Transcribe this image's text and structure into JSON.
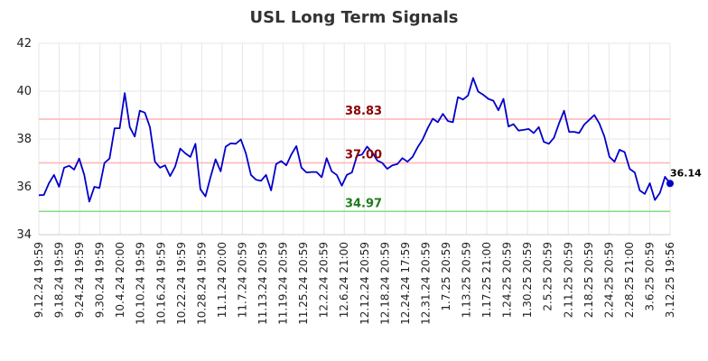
{
  "chart_data": {
    "type": "line",
    "title": "USL Long Term Signals",
    "xlabel": "",
    "ylabel": "",
    "ylim": [
      34,
      42
    ],
    "yticks": [
      34,
      36,
      38,
      40,
      42
    ],
    "grid": true,
    "x_tick_labels": [
      "9.12.24 19:59",
      "9.18.24 19:59",
      "9.24.24 19:59",
      "9.30.24 19:59",
      "10.4.24 20:00",
      "10.10.24 19:59",
      "10.16.24 19:59",
      "10.22.24 19:59",
      "10.28.24 19:59",
      "11.1.24 20:00",
      "11.7.24 20:59",
      "11.13.24 20:59",
      "11.19.24 20:59",
      "11.25.24 20:59",
      "12.2.24 20:59",
      "12.6.24 21:00",
      "12.12.24 20:59",
      "12.18.24 20:59",
      "12.24.24 17:59",
      "12.31.24 20:59",
      "1.7.25 20:59",
      "1.13.25 20:59",
      "1.17.25 21:00",
      "1.24.25 20:59",
      "1.30.25 20:59",
      "2.5.25 20:59",
      "2.11.25 20:59",
      "2.18.25 20:59",
      "2.24.25 20:59",
      "2.28.25 21:00",
      "3.6.25 20:59",
      "3.12.25 19:56"
    ],
    "series": [
      {
        "color": "#0000cc",
        "values": [
          35.65,
          35.66,
          36.15,
          36.5,
          36.0,
          36.8,
          36.88,
          36.72,
          37.18,
          36.5,
          35.38,
          36.0,
          35.95,
          37.0,
          37.18,
          38.45,
          38.45,
          39.92,
          38.5,
          38.1,
          39.18,
          39.1,
          38.5,
          37.05,
          36.8,
          36.9,
          36.45,
          36.85,
          37.6,
          37.4,
          37.25,
          37.8,
          35.9,
          35.6,
          36.4,
          37.15,
          36.65,
          37.68,
          37.82,
          37.8,
          37.98,
          37.4,
          36.5,
          36.3,
          36.25,
          36.5,
          35.85,
          36.95,
          37.08,
          36.9,
          37.35,
          37.7,
          36.8,
          36.6,
          36.62,
          36.62,
          36.4,
          37.2,
          36.65,
          36.5,
          36.05,
          36.5,
          36.6,
          37.3,
          37.35,
          37.68,
          37.45,
          37.1,
          37.0,
          36.75,
          36.9,
          36.95,
          37.2,
          37.05,
          37.25,
          37.65,
          37.98,
          38.45,
          38.85,
          38.7,
          39.05,
          38.75,
          38.7,
          39.75,
          39.65,
          39.82,
          40.55,
          39.98,
          39.85,
          39.68,
          39.6,
          39.2,
          39.68,
          38.52,
          38.62,
          38.35,
          38.38,
          38.42,
          38.25,
          38.5,
          37.88,
          37.8,
          38.05,
          38.65,
          39.18,
          38.3,
          38.3,
          38.25,
          38.6,
          38.8,
          39.0,
          38.65,
          38.1,
          37.25,
          37.05,
          37.55,
          37.45,
          36.75,
          36.6,
          35.85,
          35.7,
          36.15,
          35.45,
          35.75,
          36.42,
          36.14
        ]
      }
    ],
    "reference_lines": [
      {
        "value": 38.83,
        "label": "38.83",
        "line_color": "#ffb3b3",
        "label_color": "#8b0000"
      },
      {
        "value": 37.0,
        "label": "37.00",
        "line_color": "#ffb3b3",
        "label_color": "#8b0000"
      },
      {
        "value": 34.97,
        "label": "34.97",
        "line_color": "#80dd80",
        "label_color": "#1e7b1e"
      }
    ],
    "last_value_label": "36.14"
  }
}
